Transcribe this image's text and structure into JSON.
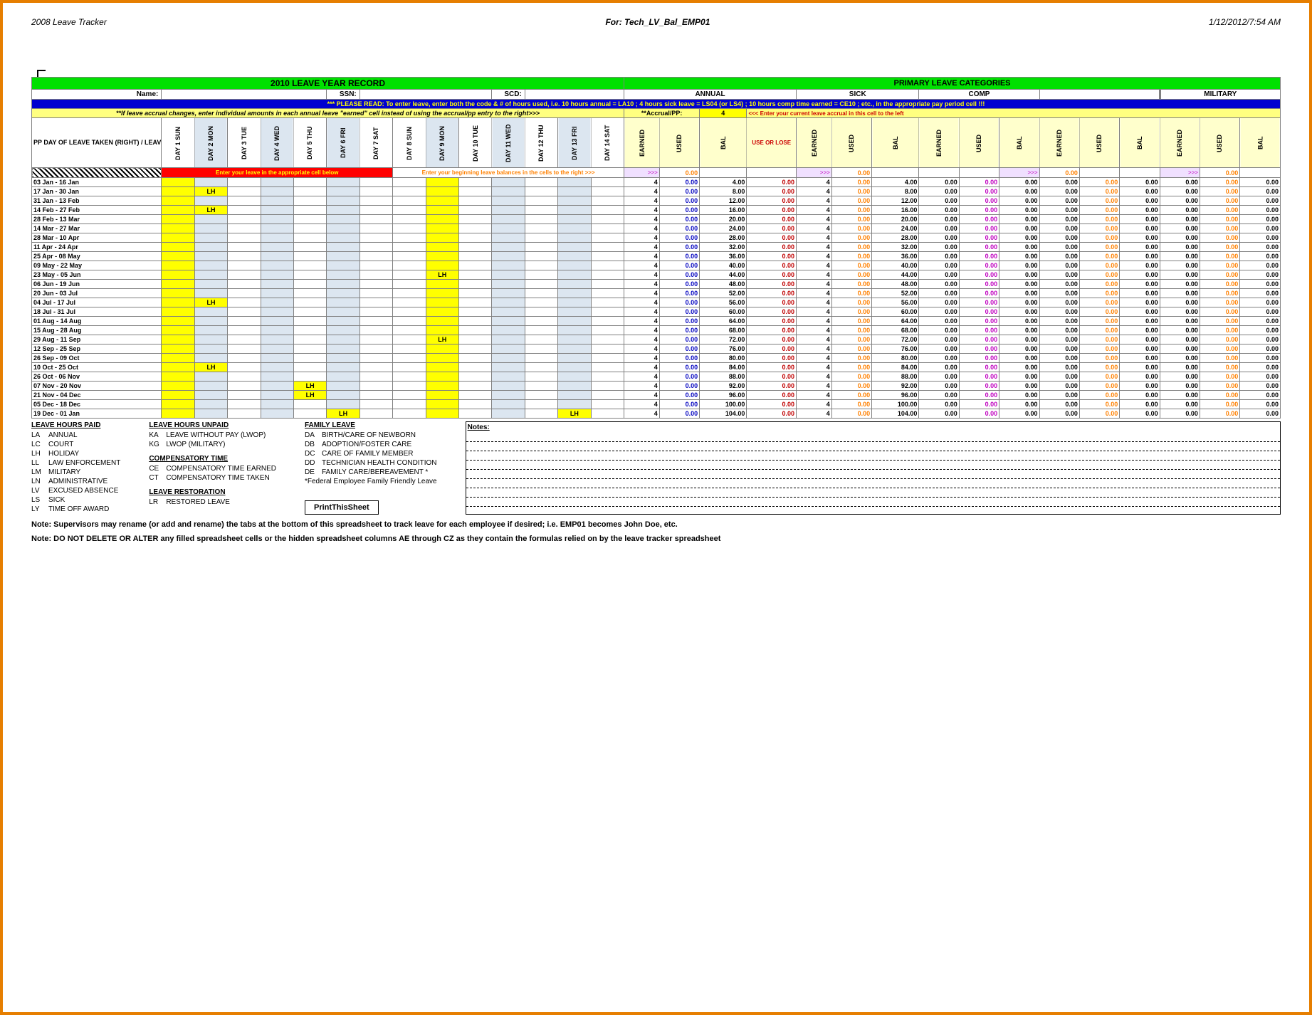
{
  "header": {
    "left": "2008 Leave Tracker",
    "center": "For: Tech_LV_Bal_EMP01",
    "right": "1/12/2012/7:54 AM"
  },
  "titles": {
    "main": "2010 LEAVE YEAR RECORD",
    "primary": "PRIMARY LEAVE CATEGORIES"
  },
  "labels": {
    "name": "Name:",
    "ssn": "SSN:",
    "scd": "SCD:"
  },
  "groups": {
    "annual": "ANNUAL",
    "sick": "SICK",
    "comp": "COMP",
    "military": "MILITARY"
  },
  "instr": {
    "blue": "*** PLEASE READ: To enter leave, enter both the code & # of hours used, i.e. 10 hours annual = LA10 ; 4 hours sick leave = LS04 (or LS4) ; 10 hours comp time earned = CE10 ; etc., in the appropriate pay period cell !!!",
    "yellow": "**If leave accrual changes, enter individual amounts in each  annual leave \"earned\" cell instead of using the accrual/pp entry to the right>>>",
    "accrual_lbl": "**Accrual/PP:",
    "accrual_val": "4",
    "accrual_txt": "<<< Enter your current leave accrual in this cell to the left",
    "red": "Enter your leave in the appropriate cell below",
    "orange": "Enter your beginning leave balances in the cells to the right >>>"
  },
  "ppHeader": "PP DAY OF LEAVE TAKEN (RIGHT) / LEAVE PERIOD (BELOW)",
  "dayHeaders": [
    "DAY 1 SUN",
    "DAY 2 MON",
    "DAY 3 TUE",
    "DAY 4 WED",
    "DAY 5 THU",
    "DAY 6 FRI",
    "DAY 7 SAT",
    "DAY 8 SUN",
    "DAY 9 MON",
    "DAY 10 TUE",
    "DAY 11 WED",
    "DAY 12 THU",
    "DAY 13 FRI",
    "DAY 14 SAT"
  ],
  "dayShade": [
    false,
    true,
    false,
    true,
    false,
    true,
    false,
    false,
    true,
    false,
    true,
    false,
    true,
    false
  ],
  "catHeaders": {
    "earned": "EARNED",
    "used": "USED",
    "bal": "BAL",
    "useorlose": "USE OR LOSE"
  },
  "periods": [
    {
      "label": "03 Jan - 16 Jan",
      "lh": [],
      "bal": 4.0
    },
    {
      "label": "17 Jan - 30 Jan",
      "lh": [
        1
      ],
      "bal": 8.0
    },
    {
      "label": "31 Jan - 13 Feb",
      "lh": [],
      "bal": 12.0
    },
    {
      "label": "14 Feb - 27 Feb",
      "lh": [
        1
      ],
      "bal": 16.0
    },
    {
      "label": "28 Feb - 13 Mar",
      "lh": [],
      "bal": 20.0
    },
    {
      "label": "14 Mar - 27 Mar",
      "lh": [],
      "bal": 24.0
    },
    {
      "label": "28 Mar - 10 Apr",
      "lh": [],
      "bal": 28.0
    },
    {
      "label": "11 Apr - 24 Apr",
      "lh": [],
      "bal": 32.0
    },
    {
      "label": "25 Apr - 08 May",
      "lh": [],
      "bal": 36.0
    },
    {
      "label": "09 May - 22 May",
      "lh": [],
      "bal": 40.0
    },
    {
      "label": "23 May - 05 Jun",
      "lh": [
        8
      ],
      "bal": 44.0
    },
    {
      "label": "06 Jun - 19 Jun",
      "lh": [],
      "bal": 48.0
    },
    {
      "label": "20 Jun - 03 Jul",
      "lh": [],
      "bal": 52.0
    },
    {
      "label": "04 Jul - 17 Jul",
      "lh": [
        1
      ],
      "bal": 56.0
    },
    {
      "label": "18 Jul - 31 Jul",
      "lh": [],
      "bal": 60.0
    },
    {
      "label": "01 Aug - 14 Aug",
      "lh": [],
      "bal": 64.0
    },
    {
      "label": "15 Aug - 28 Aug",
      "lh": [],
      "bal": 68.0
    },
    {
      "label": "29 Aug - 11 Sep",
      "lh": [
        8
      ],
      "bal": 72.0
    },
    {
      "label": "12 Sep - 25 Sep",
      "lh": [],
      "bal": 76.0
    },
    {
      "label": "26 Sep - 09 Oct",
      "lh": [],
      "bal": 80.0
    },
    {
      "label": "10 Oct - 25 Oct",
      "lh": [
        1
      ],
      "bal": 84.0
    },
    {
      "label": "26 Oct - 06 Nov",
      "lh": [],
      "bal": 88.0
    },
    {
      "label": "07 Nov - 20 Nov",
      "lh": [
        4
      ],
      "bal": 92.0
    },
    {
      "label": "21 Nov - 04 Dec",
      "lh": [
        4
      ],
      "bal": 96.0
    },
    {
      "label": "05 Dec - 18 Dec",
      "lh": [],
      "bal": 100.0
    },
    {
      "label": "19 Dec - 01 Jan",
      "lh": [
        5,
        12
      ],
      "bal": 104.0
    }
  ],
  "rowVals": {
    "earned": "4",
    "used": "0.00",
    "red": "0.00",
    "sickE": "4",
    "sickU": "0.00",
    "compZ": "0.00",
    "magZ": "0.00",
    "oraZ": "0.00"
  },
  "legend": {
    "paid": {
      "title": "LEAVE HOURS PAID",
      "items": [
        [
          "LA",
          "ANNUAL"
        ],
        [
          "LC",
          "COURT"
        ],
        [
          "LH",
          "HOLIDAY"
        ],
        [
          "LL",
          "LAW ENFORCEMENT"
        ],
        [
          "LM",
          "MILITARY"
        ],
        [
          "LN",
          "ADMINISTRATIVE"
        ],
        [
          "LV",
          "EXCUSED ABSENCE"
        ],
        [
          "LS",
          "SICK"
        ],
        [
          "LY",
          "TIME OFF AWARD"
        ]
      ]
    },
    "unpaid": {
      "title": "LEAVE HOURS UNPAID",
      "items": [
        [
          "KA",
          "LEAVE WITHOUT PAY (LWOP)"
        ],
        [
          "KG",
          "LWOP (MILITARY)"
        ]
      ]
    },
    "comp": {
      "title": "COMPENSATORY TIME",
      "items": [
        [
          "CE",
          "COMPENSATORY TIME EARNED"
        ],
        [
          "CT",
          "COMPENSATORY TIME TAKEN"
        ]
      ]
    },
    "rest": {
      "title": "LEAVE RESTORATION",
      "items": [
        [
          "LR",
          "RESTORED LEAVE"
        ]
      ]
    },
    "family": {
      "title": "FAMILY LEAVE",
      "items": [
        [
          "DA",
          "BIRTH/CARE OF NEWBORN"
        ],
        [
          "DB",
          "ADOPTION/FOSTER CARE"
        ],
        [
          "DC",
          "CARE OF FAMILY MEMBER"
        ],
        [
          "DD",
          "TECHNICIAN HEALTH CONDITION"
        ],
        [
          "DE",
          "FAMILY CARE/BEREAVEMENT *"
        ]
      ],
      "foot": "*Federal Employee Family Friendly Leave"
    },
    "notes": "Notes:",
    "print": "PrintThisSheet"
  },
  "footnotes": [
    "Note:  Supervisors may rename (or add and rename) the tabs at the bottom of this spreadsheet to track leave for each employee if desired; i.e. EMP01 becomes John Doe, etc.",
    "Note:  DO NOT DELETE OR ALTER any filled spreadsheet cells or the hidden spreadsheet columns AE through CZ as they contain the formulas relied on by the leave tracker spreadsheet"
  ]
}
